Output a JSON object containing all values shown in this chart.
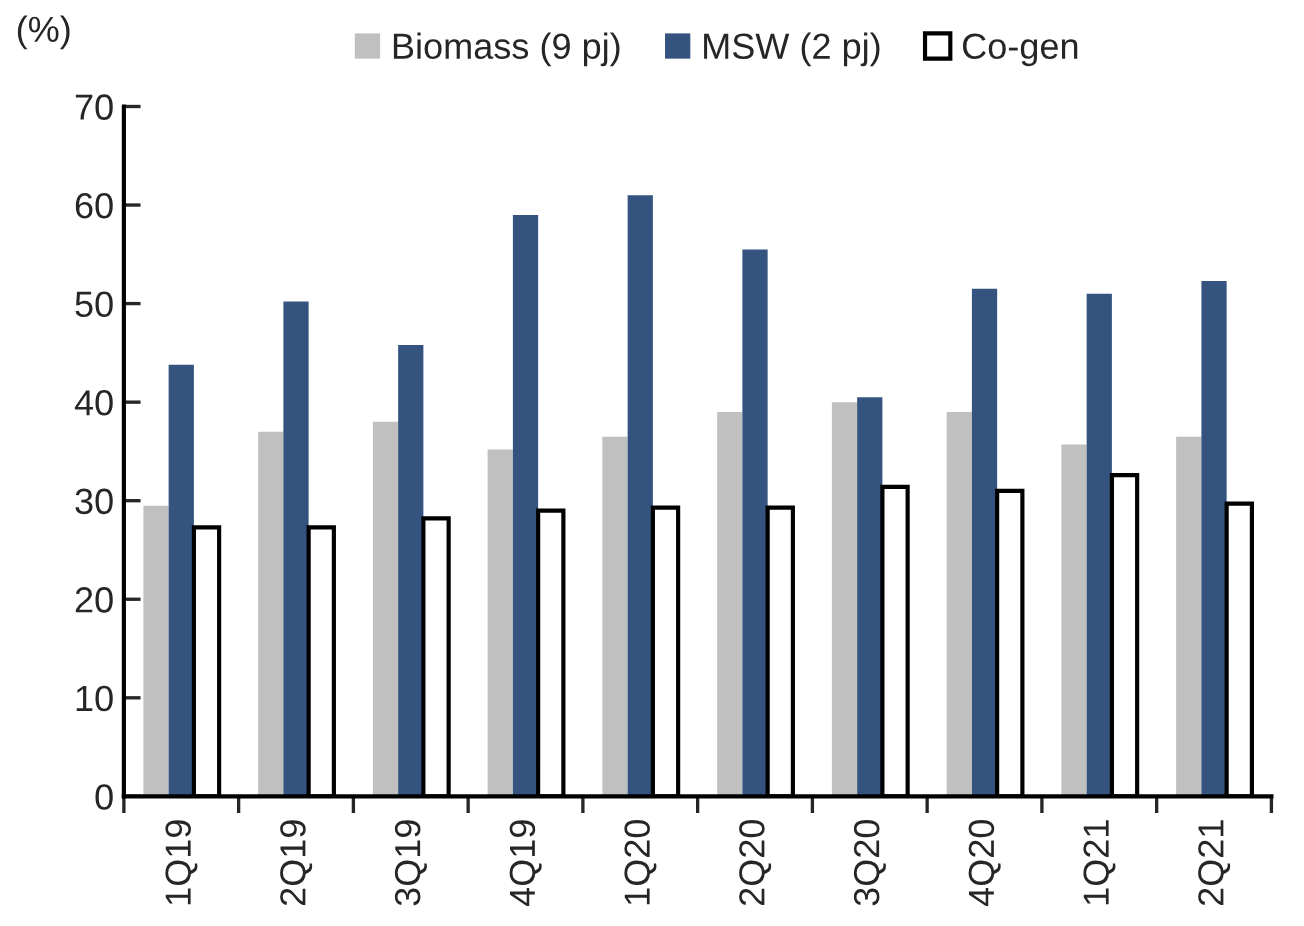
{
  "chart_data": {
    "type": "bar",
    "ylabel": "(%)",
    "categories": [
      "1Q19",
      "2Q19",
      "3Q19",
      "4Q19",
      "1Q20",
      "2Q20",
      "3Q20",
      "4Q20",
      "1Q21",
      "2Q21"
    ],
    "series": [
      {
        "name": "Biomass (9 pj)",
        "color": "#c0c0c0",
        "values": [
          29.5,
          37,
          38,
          35.2,
          36.5,
          39,
          40,
          39,
          35.7,
          36.5
        ]
      },
      {
        "name": "MSW (2 pj)",
        "color": "#34547f",
        "values": [
          43.8,
          50.2,
          45.8,
          59,
          61,
          55.5,
          40.5,
          51.5,
          51,
          52.3
        ]
      },
      {
        "name": "Co-gen",
        "color": "#ffffff",
        "values": [
          27.3,
          27.3,
          28.2,
          29,
          29.3,
          29.3,
          31.4,
          31,
          32.6,
          29.7
        ]
      }
    ],
    "ylim": [
      0,
      70
    ],
    "yticks": [
      0,
      10,
      20,
      30,
      40,
      50,
      60,
      70
    ],
    "legend": "top",
    "grid": false
  }
}
